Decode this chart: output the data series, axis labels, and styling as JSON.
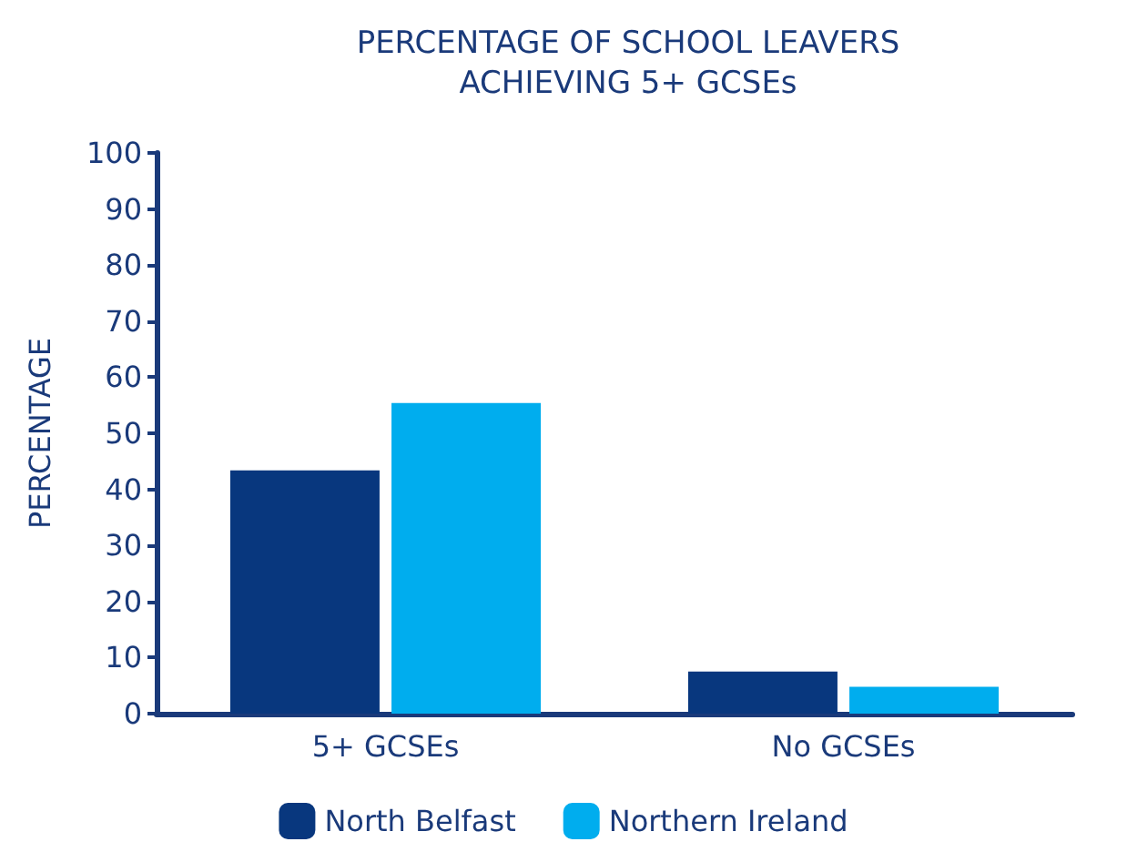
{
  "chart_data": {
    "type": "bar",
    "title": "PERCENTAGE OF SCHOOL LEAVERS\nACHIEVING 5+ GCSEs",
    "ylabel": "PERCENTAGE",
    "categories": [
      "5+ GCSEs",
      "No GCSEs"
    ],
    "series": [
      {
        "name": "North Belfast",
        "color": "#08377e",
        "values": [
          43.4,
          7.5
        ]
      },
      {
        "name": "Northern Ireland",
        "color": "#00adee",
        "values": [
          55.4,
          4.8
        ]
      }
    ],
    "ylim": [
      0,
      100
    ],
    "yticks": [
      0,
      10,
      20,
      30,
      40,
      50,
      60,
      70,
      80,
      90,
      100
    ],
    "grid": false,
    "legend": "bottom"
  }
}
